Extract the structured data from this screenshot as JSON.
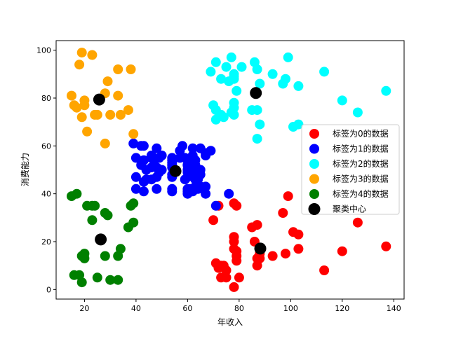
{
  "chart_data": {
    "type": "scatter",
    "title": "",
    "xlabel": "年收入",
    "ylabel": "消费能力",
    "xlim": [
      9,
      144
    ],
    "ylim": [
      -4,
      104
    ],
    "xticks": [
      20,
      40,
      60,
      80,
      100,
      120,
      140
    ],
    "yticks": [
      0,
      20,
      40,
      60,
      80,
      100
    ],
    "grid": false,
    "legend_position": "center-right",
    "series": [
      {
        "name": "标签为0的数据",
        "color": "#ff0000",
        "points": [
          [
            70,
            29
          ],
          [
            72,
            35
          ],
          [
            71,
            11
          ],
          [
            72,
            9
          ],
          [
            73,
            5
          ],
          [
            73,
            10
          ],
          [
            74,
            10
          ],
          [
            75,
            5
          ],
          [
            75,
            8
          ],
          [
            78,
            36
          ],
          [
            78,
            22
          ],
          [
            78,
            17
          ],
          [
            78,
            20
          ],
          [
            78,
            1
          ],
          [
            79,
            35
          ],
          [
            79,
            16
          ],
          [
            79,
            12
          ],
          [
            79,
            14
          ],
          [
            80,
            5
          ],
          [
            85,
            26
          ],
          [
            86,
            20
          ],
          [
            87,
            27
          ],
          [
            87,
            13
          ],
          [
            87,
            10
          ],
          [
            88,
            13
          ],
          [
            88,
            15
          ],
          [
            93,
            14
          ],
          [
            97,
            32
          ],
          [
            98,
            15
          ],
          [
            99,
            39
          ],
          [
            101,
            24
          ],
          [
            103,
            17
          ],
          [
            103,
            23
          ],
          [
            113,
            8
          ],
          [
            120,
            16
          ],
          [
            126,
            28
          ],
          [
            137,
            18
          ]
        ]
      },
      {
        "name": "标签为1的数据",
        "color": "#0000ff",
        "points": [
          [
            39,
            61
          ],
          [
            40,
            55
          ],
          [
            40,
            47
          ],
          [
            40,
            42
          ],
          [
            42,
            52
          ],
          [
            42,
            60
          ],
          [
            43,
            54
          ],
          [
            43,
            60
          ],
          [
            43,
            45
          ],
          [
            43,
            41
          ],
          [
            44,
            50
          ],
          [
            44,
            46
          ],
          [
            46,
            51
          ],
          [
            46,
            46
          ],
          [
            46,
            56
          ],
          [
            46,
            55
          ],
          [
            47,
            52
          ],
          [
            48,
            59
          ],
          [
            48,
            51
          ],
          [
            48,
            47
          ],
          [
            48,
            42
          ],
          [
            49,
            49
          ],
          [
            49,
            55
          ],
          [
            50,
            56
          ],
          [
            50,
            50
          ],
          [
            54,
            47
          ],
          [
            54,
            54
          ],
          [
            54,
            53
          ],
          [
            54,
            52
          ],
          [
            54,
            48
          ],
          [
            54,
            42
          ],
          [
            54,
            51
          ],
          [
            54,
            55
          ],
          [
            54,
            41
          ],
          [
            57,
            58
          ],
          [
            57,
            55
          ],
          [
            58,
            60
          ],
          [
            59,
            46
          ],
          [
            59,
            55
          ],
          [
            60,
            52
          ],
          [
            60,
            41
          ],
          [
            60,
            49
          ],
          [
            60,
            40
          ],
          [
            60,
            42
          ],
          [
            60,
            52
          ],
          [
            60,
            47
          ],
          [
            60,
            50
          ],
          [
            61,
            42
          ],
          [
            61,
            49
          ],
          [
            62,
            41
          ],
          [
            62,
            48
          ],
          [
            62,
            59
          ],
          [
            62,
            55
          ],
          [
            62,
            56
          ],
          [
            62,
            42
          ],
          [
            63,
            50
          ],
          [
            63,
            46
          ],
          [
            63,
            43
          ],
          [
            63,
            48
          ],
          [
            63,
            52
          ],
          [
            63,
            54
          ],
          [
            64,
            42
          ],
          [
            64,
            46
          ],
          [
            65,
            48
          ],
          [
            65,
            50
          ],
          [
            65,
            43
          ],
          [
            65,
            59
          ],
          [
            67,
            43
          ],
          [
            67,
            57
          ],
          [
            67,
            56
          ],
          [
            67,
            40
          ],
          [
            69,
            58
          ],
          [
            71,
            35
          ],
          [
            76,
            40
          ]
        ]
      },
      {
        "name": "标签为2的数据",
        "color": "#00ffff",
        "points": [
          [
            69,
            91
          ],
          [
            70,
            77
          ],
          [
            71,
            95
          ],
          [
            71,
            75
          ],
          [
            71,
            71
          ],
          [
            73,
            88
          ],
          [
            73,
            73
          ],
          [
            74,
            72
          ],
          [
            75,
            93
          ],
          [
            76,
            87
          ],
          [
            77,
            97
          ],
          [
            77,
            74
          ],
          [
            78,
            90
          ],
          [
            78,
            88
          ],
          [
            78,
            76
          ],
          [
            78,
            89
          ],
          [
            78,
            78
          ],
          [
            78,
            73
          ],
          [
            79,
            83
          ],
          [
            81,
            93
          ],
          [
            85,
            75
          ],
          [
            86,
            95
          ],
          [
            87,
            63
          ],
          [
            87,
            75
          ],
          [
            87,
            92
          ],
          [
            88,
            86
          ],
          [
            88,
            69
          ],
          [
            93,
            90
          ],
          [
            97,
            86
          ],
          [
            98,
            88
          ],
          [
            99,
            97
          ],
          [
            101,
            68
          ],
          [
            103,
            85
          ],
          [
            103,
            69
          ],
          [
            113,
            91
          ],
          [
            120,
            79
          ],
          [
            126,
            74
          ],
          [
            137,
            83
          ]
        ]
      },
      {
        "name": "标签为3的数据",
        "color": "#ffa500",
        "points": [
          [
            15,
            81
          ],
          [
            16,
            77
          ],
          [
            17,
            76
          ],
          [
            18,
            94
          ],
          [
            19,
            99
          ],
          [
            19,
            72
          ],
          [
            20,
            77
          ],
          [
            20,
            79
          ],
          [
            21,
            66
          ],
          [
            23,
            98
          ],
          [
            24,
            73
          ],
          [
            25,
            73
          ],
          [
            28,
            82
          ],
          [
            28,
            61
          ],
          [
            29,
            87
          ],
          [
            30,
            73
          ],
          [
            33,
            81
          ],
          [
            33,
            92
          ],
          [
            34,
            73
          ],
          [
            37,
            75
          ],
          [
            38,
            92
          ],
          [
            39,
            65
          ]
        ]
      },
      {
        "name": "标签为4的数据",
        "color": "#008000",
        "points": [
          [
            15,
            39
          ],
          [
            16,
            6
          ],
          [
            17,
            40
          ],
          [
            18,
            6
          ],
          [
            19,
            3
          ],
          [
            19,
            14
          ],
          [
            20,
            15
          ],
          [
            20,
            13
          ],
          [
            21,
            35
          ],
          [
            23,
            35
          ],
          [
            23,
            29
          ],
          [
            24,
            35
          ],
          [
            25,
            5
          ],
          [
            28,
            14
          ],
          [
            28,
            32
          ],
          [
            29,
            31
          ],
          [
            30,
            4
          ],
          [
            33,
            4
          ],
          [
            33,
            14
          ],
          [
            34,
            17
          ],
          [
            37,
            26
          ],
          [
            38,
            35
          ],
          [
            39,
            36
          ],
          [
            39,
            28
          ]
        ]
      },
      {
        "name": "聚类中心",
        "color": "#000000",
        "points": [
          [
            86.5,
            82.1
          ],
          [
            55.3,
            49.5
          ],
          [
            25.7,
            79.4
          ],
          [
            26.3,
            20.9
          ],
          [
            88.2,
            17.1
          ]
        ]
      }
    ]
  }
}
